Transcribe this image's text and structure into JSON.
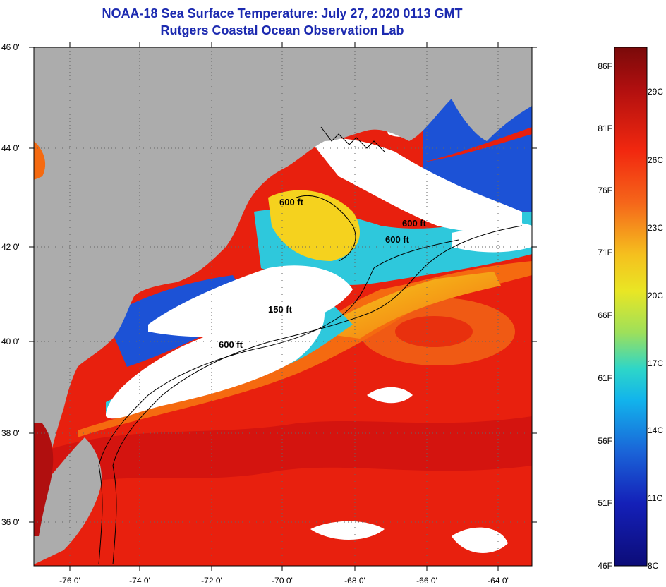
{
  "title": {
    "line1": "NOAA-18 Sea Surface Temperature:  July 27, 2020 0113 GMT",
    "line2": "Rutgers Coastal Ocean Observation Lab"
  },
  "axes": {
    "lat_labels": [
      "46 0'",
      "44 0'",
      "42 0'",
      "40 0'",
      "38 0'",
      "36 0'"
    ],
    "lon_labels": [
      "-76 0'",
      "-74 0'",
      "-72 0'",
      "-70 0'",
      "-68 0'",
      "-66 0'",
      "-64 0'"
    ]
  },
  "contours": [
    "600 ft",
    "600 ft",
    "600 ft",
    "150 ft",
    "600 ft"
  ],
  "colorbar": {
    "fahrenheit": [
      "86F",
      "81F",
      "76F",
      "71F",
      "66F",
      "61F",
      "56F",
      "51F",
      "46F"
    ],
    "celsius": [
      "29C",
      "26C",
      "23C",
      "20C",
      "17C",
      "14C",
      "11C",
      "8C"
    ]
  },
  "colors": {
    "land": "#acacac",
    "cloud": "#ffffff",
    "warm": "#e8200e",
    "hot": "#c80c0c",
    "orange": "#f56a10",
    "yellow": "#f5d21e",
    "cyan": "#2ec8dc",
    "blue": "#1c52d6",
    "navy": "#0c1890",
    "title": "#1c2ab0"
  }
}
